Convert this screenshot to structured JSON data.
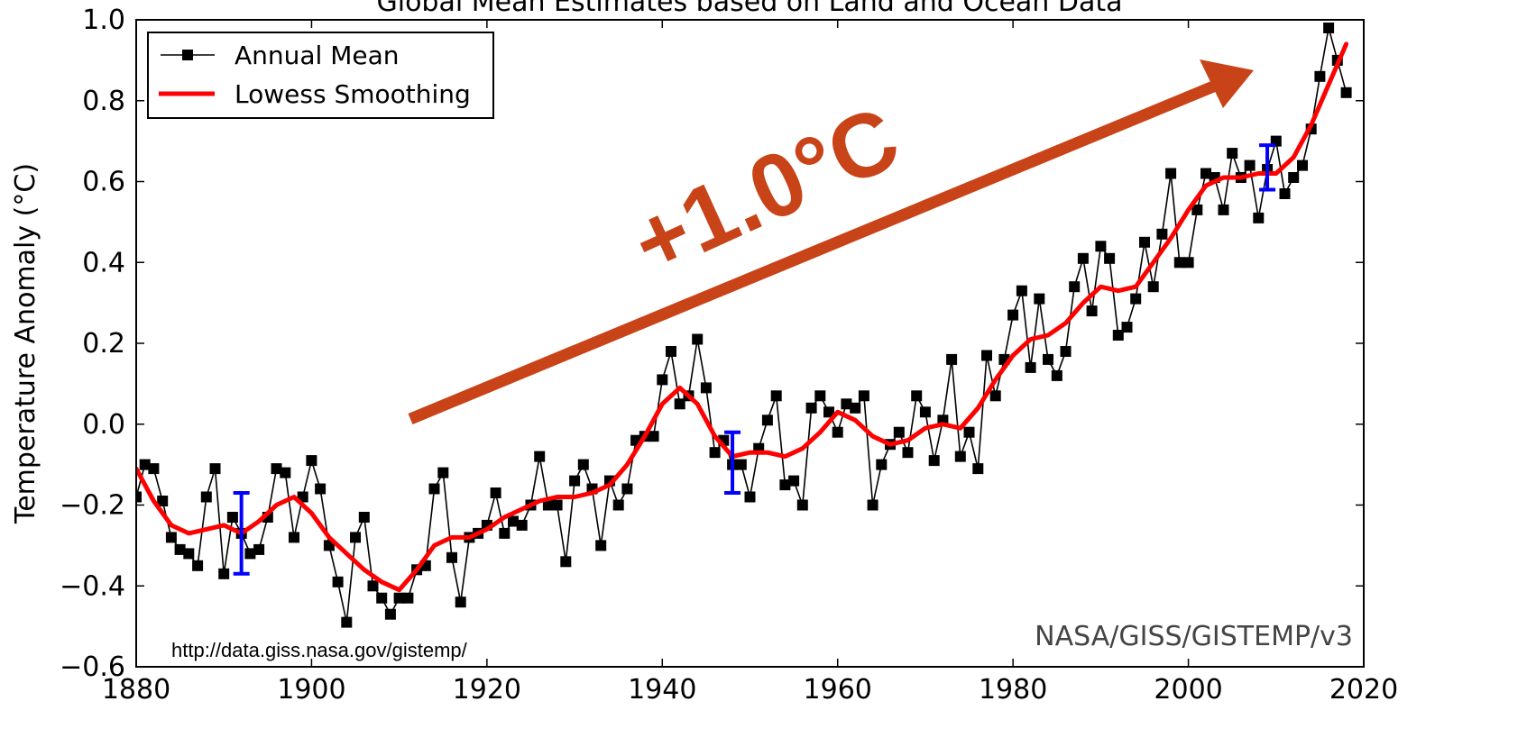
{
  "chart_data": {
    "type": "line",
    "title": "Global Mean Estimates based on Land and Ocean Data",
    "xlabel": "",
    "ylabel": "Temperature Anomaly (°C)",
    "xlim": [
      1880,
      2020
    ],
    "ylim": [
      -0.6,
      1.0
    ],
    "xticks": [
      1880,
      1900,
      1920,
      1940,
      1960,
      1980,
      2000,
      2020
    ],
    "yticks": [
      -0.6,
      -0.4,
      -0.2,
      0.0,
      0.2,
      0.4,
      0.6,
      0.8,
      1.0
    ],
    "ytick_labels": [
      "−0.6",
      "−0.4",
      "−0.2",
      "0.0",
      "0.2",
      "0.4",
      "0.6",
      "0.8",
      "1.0"
    ],
    "legend": {
      "placement": "top-left",
      "entries": [
        "Annual Mean",
        "Lowess Smoothing"
      ]
    },
    "grid": false,
    "series": [
      {
        "name": "Annual Mean",
        "color": "#000000",
        "marker": "square",
        "x": [
          1880,
          1881,
          1882,
          1883,
          1884,
          1885,
          1886,
          1887,
          1888,
          1889,
          1890,
          1891,
          1892,
          1893,
          1894,
          1895,
          1896,
          1897,
          1898,
          1899,
          1900,
          1901,
          1902,
          1903,
          1904,
          1905,
          1906,
          1907,
          1908,
          1909,
          1910,
          1911,
          1912,
          1913,
          1914,
          1915,
          1916,
          1917,
          1918,
          1919,
          1920,
          1921,
          1922,
          1923,
          1924,
          1925,
          1926,
          1927,
          1928,
          1929,
          1930,
          1931,
          1932,
          1933,
          1934,
          1935,
          1936,
          1937,
          1938,
          1939,
          1940,
          1941,
          1942,
          1943,
          1944,
          1945,
          1946,
          1947,
          1948,
          1949,
          1950,
          1951,
          1952,
          1953,
          1954,
          1955,
          1956,
          1957,
          1958,
          1959,
          1960,
          1961,
          1962,
          1963,
          1964,
          1965,
          1966,
          1967,
          1968,
          1969,
          1970,
          1971,
          1972,
          1973,
          1974,
          1975,
          1976,
          1977,
          1978,
          1979,
          1980,
          1981,
          1982,
          1983,
          1984,
          1985,
          1986,
          1987,
          1988,
          1989,
          1990,
          1991,
          1992,
          1993,
          1994,
          1995,
          1996,
          1997,
          1998,
          1999,
          2000,
          2001,
          2002,
          2003,
          2004,
          2005,
          2006,
          2007,
          2008,
          2009,
          2010,
          2011,
          2012,
          2013,
          2014,
          2015,
          2016,
          2017,
          2018
        ],
        "y": [
          -0.18,
          -0.1,
          -0.11,
          -0.19,
          -0.28,
          -0.31,
          -0.32,
          -0.35,
          -0.18,
          -0.11,
          -0.37,
          -0.23,
          -0.27,
          -0.32,
          -0.31,
          -0.23,
          -0.11,
          -0.12,
          -0.28,
          -0.18,
          -0.09,
          -0.16,
          -0.3,
          -0.39,
          -0.49,
          -0.28,
          -0.23,
          -0.4,
          -0.43,
          -0.47,
          -0.43,
          -0.43,
          -0.36,
          -0.35,
          -0.16,
          -0.12,
          -0.33,
          -0.44,
          -0.28,
          -0.27,
          -0.25,
          -0.17,
          -0.27,
          -0.24,
          -0.25,
          -0.2,
          -0.08,
          -0.2,
          -0.2,
          -0.34,
          -0.14,
          -0.1,
          -0.16,
          -0.3,
          -0.14,
          -0.2,
          -0.16,
          -0.04,
          -0.03,
          -0.03,
          0.11,
          0.18,
          0.05,
          0.07,
          0.21,
          0.09,
          -0.07,
          -0.04,
          -0.1,
          -0.1,
          -0.18,
          -0.06,
          0.01,
          0.07,
          -0.15,
          -0.14,
          -0.2,
          0.04,
          0.07,
          0.03,
          -0.02,
          0.05,
          0.04,
          0.07,
          -0.2,
          -0.1,
          -0.05,
          -0.02,
          -0.07,
          0.07,
          0.03,
          -0.09,
          0.01,
          0.16,
          -0.08,
          -0.02,
          -0.11,
          0.17,
          0.07,
          0.16,
          0.27,
          0.33,
          0.14,
          0.31,
          0.16,
          0.12,
          0.18,
          0.34,
          0.41,
          0.28,
          0.44,
          0.41,
          0.22,
          0.24,
          0.31,
          0.45,
          0.34,
          0.47,
          0.62,
          0.4,
          0.4,
          0.53,
          0.62,
          0.61,
          0.53,
          0.67,
          0.61,
          0.64,
          0.51,
          0.63,
          0.7,
          0.57,
          0.61,
          0.64,
          0.73,
          0.86,
          0.98,
          0.9,
          0.82
        ]
      },
      {
        "name": "Lowess Smoothing",
        "color": "#ff0000",
        "x": [
          1880,
          1882,
          1884,
          1886,
          1888,
          1890,
          1892,
          1894,
          1896,
          1898,
          1900,
          1902,
          1904,
          1906,
          1908,
          1910,
          1912,
          1914,
          1916,
          1918,
          1920,
          1922,
          1924,
          1926,
          1928,
          1930,
          1932,
          1934,
          1936,
          1938,
          1940,
          1942,
          1944,
          1946,
          1948,
          1950,
          1952,
          1954,
          1956,
          1958,
          1960,
          1962,
          1964,
          1966,
          1968,
          1970,
          1972,
          1974,
          1976,
          1978,
          1980,
          1982,
          1984,
          1986,
          1988,
          1990,
          1992,
          1994,
          1996,
          1998,
          2000,
          2002,
          2004,
          2006,
          2008,
          2010,
          2012,
          2014,
          2016,
          2018
        ],
        "y": [
          -0.11,
          -0.19,
          -0.25,
          -0.27,
          -0.26,
          -0.25,
          -0.27,
          -0.24,
          -0.2,
          -0.18,
          -0.22,
          -0.28,
          -0.32,
          -0.36,
          -0.39,
          -0.41,
          -0.36,
          -0.3,
          -0.28,
          -0.28,
          -0.26,
          -0.23,
          -0.21,
          -0.19,
          -0.18,
          -0.18,
          -0.17,
          -0.15,
          -0.1,
          -0.03,
          0.05,
          0.09,
          0.05,
          -0.03,
          -0.08,
          -0.07,
          -0.07,
          -0.08,
          -0.06,
          -0.02,
          0.03,
          0.01,
          -0.03,
          -0.05,
          -0.04,
          -0.01,
          0.0,
          -0.01,
          0.04,
          0.11,
          0.17,
          0.21,
          0.22,
          0.25,
          0.3,
          0.34,
          0.33,
          0.34,
          0.4,
          0.46,
          0.53,
          0.59,
          0.61,
          0.61,
          0.62,
          0.62,
          0.66,
          0.74,
          0.84,
          0.94
        ]
      }
    ],
    "error_bars": [
      {
        "x": 1892,
        "ylow": -0.37,
        "yhigh": -0.17,
        "color": "#0000ff"
      },
      {
        "x": 1948,
        "ylow": -0.17,
        "yhigh": -0.02,
        "color": "#0000ff"
      },
      {
        "x": 2009,
        "ylow": 0.58,
        "yhigh": 0.69,
        "color": "#0000ff"
      }
    ],
    "annotations": {
      "trend_label": "+1.0°C",
      "trend_arrow_color": "#c84418",
      "source_credit": "NASA/GISS/GISTEMP/v3",
      "source_url": "http://data.giss.nasa.gov/gistemp/"
    }
  }
}
